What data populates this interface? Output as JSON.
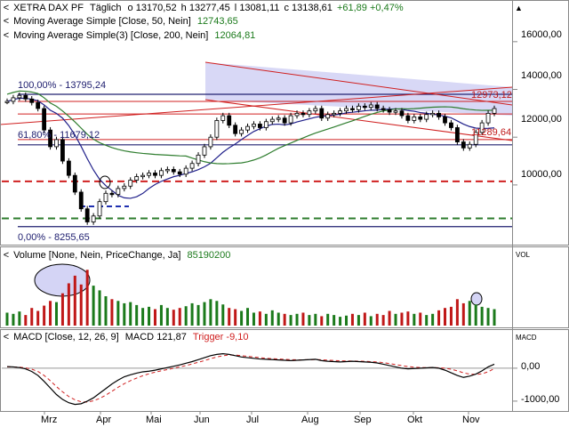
{
  "colors": {
    "up": "#1b7a1b",
    "down": "#c01818",
    "ma50": "#20208a",
    "ma200": "#2e7d2e",
    "trend": "#d02020",
    "fib": "#202070",
    "fill": "#b8b8ee",
    "macd": "#000000",
    "trigger": "#d02020"
  },
  "header": {
    "instrument": "XETRA DAX PF",
    "period": "Täglich",
    "o_label": "o",
    "open": "13170,52",
    "h_label": "h",
    "high": "13277,45",
    "l_label": "l",
    "low": "13081,11",
    "c_label": "c",
    "close": "13138,61",
    "change": "+61,89",
    "change_pct": "+0,47%",
    "ma1_label": "Moving Average Simple [Close, 50, Nein]",
    "ma1_value": "12743,65",
    "ma2_label": "Moving Average Simple(3) [Close, 200, Nein]",
    "ma2_value": "12064,81",
    "vol_label": "Volume [None, Nein, PriceChange, Ja]",
    "vol_value": "85190200",
    "macd_label": "MACD [Close, 12, 26, 9]",
    "macd_name": "MACD",
    "macd_value": "121,87",
    "trigger_name": "Trigger",
    "trigger_value": "-9,10",
    "arrow": "▲"
  },
  "price_axis": [
    "16000,00",
    "14000,00",
    "12000,00",
    "10000,00"
  ],
  "vol_axis": "VOL",
  "macd_axis": [
    "MACD",
    "0,00",
    "-1000,00"
  ],
  "annotations": {
    "fib100": "100,00% - 13795,24",
    "fib618": "61,80% - 11679,12",
    "fib0": "0,00% - 8255,65",
    "level_a": "12973,12",
    "level_b": "11289,64"
  },
  "chart_data": [
    {
      "type": "candlestick",
      "title": "XETRA DAX PF",
      "x_labels": [
        "Mrz",
        "Apr",
        "Mai",
        "Jun",
        "Jul",
        "Aug",
        "Sep",
        "Okt",
        "Nov"
      ],
      "y_ticks": [
        10000,
        12000,
        14000,
        16000
      ],
      "close": [
        13500,
        13650,
        13750,
        13600,
        13450,
        13200,
        12300,
        11600,
        11900,
        11000,
        10400,
        9700,
        9000,
        8450,
        8700,
        9300,
        9650,
        9600,
        9850,
        9950,
        10200,
        10350,
        10400,
        10500,
        10400,
        10600,
        10650,
        10550,
        10450,
        10700,
        10900,
        11250,
        11600,
        12000,
        12700,
        12900,
        12500,
        12150,
        12300,
        12450,
        12550,
        12400,
        12650,
        12750,
        12800,
        12600,
        12900,
        13000,
        12950,
        13100,
        13200,
        12800,
        12950,
        13000,
        13100,
        13200,
        13150,
        13300,
        13250,
        13350,
        13200,
        13150,
        13050,
        13100,
        12900,
        12700,
        12850,
        12750,
        12950,
        13000,
        12850,
        12600,
        12400,
        11800,
        11550,
        11700,
        12200,
        12600,
        13000,
        13200
      ],
      "series": [
        {
          "name": "Moving Average Simple [Close, 50, Nein]",
          "last": 12743.65
        },
        {
          "name": "Moving Average Simple(3) [Close, 200, Nein]",
          "last": 12064.81
        }
      ],
      "levels": [
        13795.24,
        11679.12,
        8255.65,
        12973.12,
        11289.64
      ]
    },
    {
      "type": "bar",
      "title": "Volume [None, Nein, PriceChange, Ja]",
      "last": 85190200,
      "relative_values": [
        0.22,
        0.2,
        0.24,
        0.18,
        0.3,
        0.25,
        0.34,
        0.42,
        0.4,
        0.55,
        0.72,
        0.85,
        0.7,
        0.95,
        0.68,
        0.6,
        0.5,
        0.45,
        0.42,
        0.38,
        0.4,
        0.35,
        0.3,
        0.32,
        0.28,
        0.35,
        0.3,
        0.27,
        0.3,
        0.33,
        0.38,
        0.35,
        0.4,
        0.45,
        0.42,
        0.36,
        0.3,
        0.28,
        0.25,
        0.3,
        0.22,
        0.24,
        0.2,
        0.26,
        0.22,
        0.2,
        0.18,
        0.2,
        0.22,
        0.18,
        0.2,
        0.16,
        0.2,
        0.18,
        0.15,
        0.17,
        0.2,
        0.18,
        0.22,
        0.16,
        0.2,
        0.18,
        0.25,
        0.2,
        0.22,
        0.24,
        0.2,
        0.22,
        0.18,
        0.2,
        0.26,
        0.3,
        0.32,
        0.45,
        0.38,
        0.42,
        0.36,
        0.32,
        0.3,
        0.28
      ]
    },
    {
      "type": "line",
      "title": "MACD [Close, 12, 26, 9]",
      "y_ticks": [
        0,
        -1000
      ],
      "series": [
        {
          "name": "MACD",
          "last": 121.87,
          "values": [
            50,
            40,
            20,
            -20,
            -100,
            -220,
            -400,
            -600,
            -800,
            -950,
            -1050,
            -1100,
            -1080,
            -1000,
            -900,
            -760,
            -620,
            -480,
            -360,
            -260,
            -200,
            -150,
            -110,
            -90,
            -60,
            -20,
            20,
            60,
            100,
            150,
            200,
            260,
            320,
            380,
            420,
            440,
            420,
            380,
            340,
            320,
            300,
            280,
            270,
            260,
            250,
            240,
            230,
            240,
            250,
            260,
            270,
            230,
            210,
            200,
            190,
            200,
            210,
            200,
            190,
            180,
            160,
            120,
            80,
            40,
            0,
            -20,
            -10,
            0,
            10,
            20,
            0,
            -60,
            -140,
            -220,
            -280,
            -240,
            -180,
            -80,
            40,
            121.87
          ]
        },
        {
          "name": "Trigger",
          "last": -9.1,
          "values": [
            40,
            38,
            30,
            10,
            -30,
            -100,
            -220,
            -380,
            -560,
            -720,
            -860,
            -960,
            -1020,
            -1030,
            -990,
            -920,
            -820,
            -700,
            -580,
            -470,
            -380,
            -300,
            -230,
            -170,
            -120,
            -80,
            -40,
            0,
            40,
            80,
            130,
            180,
            230,
            290,
            340,
            380,
            400,
            400,
            380,
            360,
            340,
            320,
            300,
            290,
            280,
            270,
            260,
            255,
            255,
            258,
            262,
            255,
            245,
            235,
            225,
            220,
            218,
            214,
            208,
            200,
            190,
            170,
            140,
            110,
            80,
            50,
            30,
            20,
            18,
            18,
            14,
            0,
            -30,
            -80,
            -140,
            -180,
            -190,
            -170,
            -110,
            -9.1
          ]
        }
      ]
    }
  ]
}
